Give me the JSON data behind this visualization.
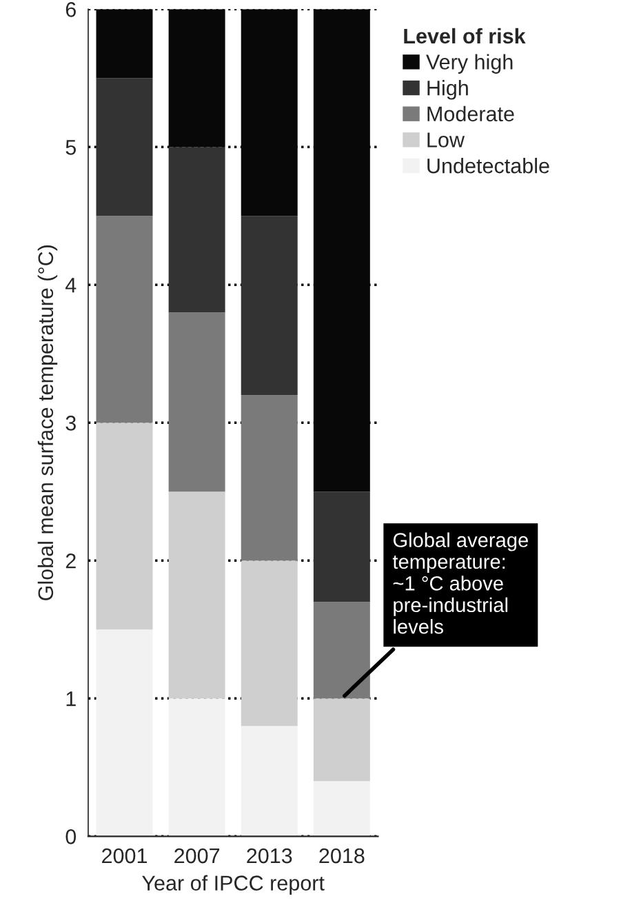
{
  "chart_data": {
    "type": "bar",
    "stacked": true,
    "xlabel": "Year of IPCC report",
    "ylabel": "Global mean surface temperature (°C)",
    "legend_title": "Level of risk",
    "categories": [
      "2001",
      "2007",
      "2013",
      "2018"
    ],
    "series": [
      {
        "name": "Undetectable",
        "color": "#f2f2f2",
        "values": [
          1.5,
          1.0,
          0.8,
          0.4
        ]
      },
      {
        "name": "Low",
        "color": "#cfcfcf",
        "values": [
          1.5,
          1.5,
          1.2,
          0.6
        ]
      },
      {
        "name": "Moderate",
        "color": "#7a7a7a",
        "values": [
          1.5,
          1.3,
          1.2,
          0.7
        ]
      },
      {
        "name": "High",
        "color": "#333333",
        "values": [
          1.0,
          1.2,
          1.3,
          0.8
        ]
      },
      {
        "name": "Very high",
        "color": "#080808",
        "values": [
          0.5,
          1.0,
          1.5,
          3.5
        ]
      }
    ],
    "ylim": [
      0,
      6
    ],
    "yticks": [
      0,
      1,
      2,
      3,
      4,
      5,
      6
    ],
    "grid": "y",
    "legend": "top right",
    "annotations": [
      {
        "text": "Global average\ntemperature:\n~1 °C above\npre-industrial\nlevels",
        "x": "2018",
        "y": 1
      }
    ]
  }
}
